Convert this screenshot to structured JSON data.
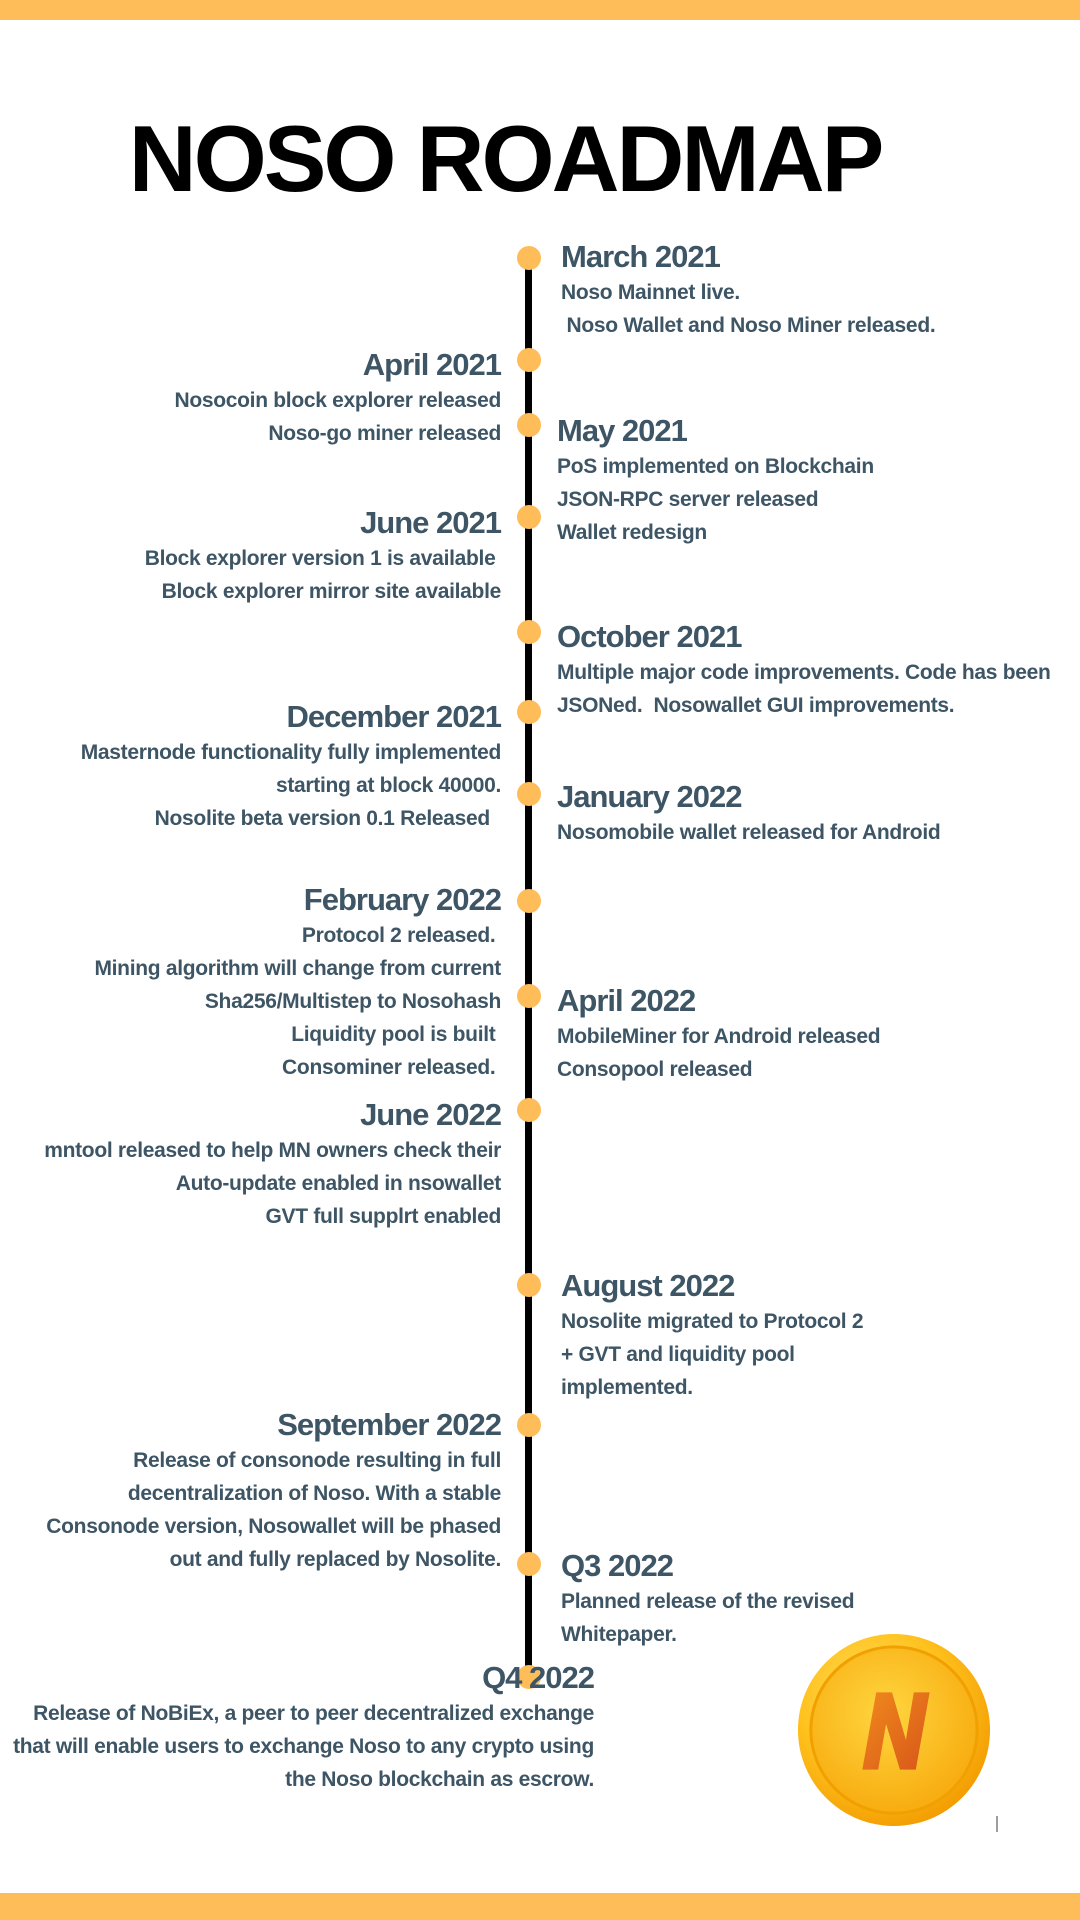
{
  "title": "NOSO ROADMAP",
  "colors": {
    "accent": "#ffbd59",
    "text": "#3d5564",
    "title": "#000000",
    "line": "#000000"
  },
  "milestones": [
    {
      "date": "March 2021",
      "side": "right",
      "lines": [
        "Noso Mainnet live.",
        " Noso Wallet and Noso Miner released."
      ]
    },
    {
      "date": "April 2021",
      "side": "left",
      "lines": [
        "Nosocoin block explorer released",
        "Noso-go miner released"
      ]
    },
    {
      "date": "May 2021",
      "side": "right",
      "lines": [
        "PoS implemented on Blockchain",
        "JSON-RPC server released",
        "Wallet redesign"
      ]
    },
    {
      "date": "June 2021",
      "side": "left",
      "lines": [
        "Block explorer version 1 is available ",
        "Block explorer mirror site available"
      ]
    },
    {
      "date": "October 2021",
      "side": "right",
      "lines": [
        "Multiple major code improvements. Code has been",
        "JSONed.  Nosowallet GUI improvements."
      ]
    },
    {
      "date": "December 2021",
      "side": "left",
      "lines": [
        "Masternode functionality fully implemented",
        "starting at block 40000.",
        "Nosolite beta version 0.1 Released  "
      ]
    },
    {
      "date": "January 2022",
      "side": "right",
      "lines": [
        "Nosomobile wallet released for Android"
      ]
    },
    {
      "date": "February 2022",
      "side": "left",
      "lines": [
        "Protocol 2 released. ",
        "Mining algorithm will change from current",
        "Sha256/Multistep to Nosohash",
        "Liquidity pool is built ",
        "Consominer released. "
      ]
    },
    {
      "date": "April 2022",
      "side": "right",
      "lines": [
        "MobileMiner for Android released",
        "Consopool released"
      ]
    },
    {
      "date": "June 2022",
      "side": "left",
      "lines": [
        "mntool released to help MN owners check their",
        "Auto-update enabled in nsowallet",
        "GVT full supplrt enabled"
      ]
    },
    {
      "date": "August 2022",
      "side": "right",
      "lines": [
        "Nosolite migrated to Protocol 2",
        "+ GVT and liquidity pool",
        "implemented."
      ]
    },
    {
      "date": "September 2022",
      "side": "left",
      "lines": [
        "Release of consonode resulting in full",
        "decentralization of Noso. With a stable",
        "Consonode version, Nosowallet will be phased",
        "out and fully replaced by Nosolite."
      ]
    },
    {
      "date": "Q3 2022",
      "side": "right",
      "lines": [
        "Planned release of the revised",
        "Whitepaper."
      ]
    },
    {
      "date": "Q4 2022",
      "side": "left",
      "lines": [
        "Release of NoBiEx, a peer to peer decentralized exchange",
        "that will enable users to exchange Noso to any crypto using",
        "the Noso blockchain as escrow."
      ]
    }
  ],
  "logo": {
    "letter": "N",
    "icon": "noso-coin-logo"
  }
}
